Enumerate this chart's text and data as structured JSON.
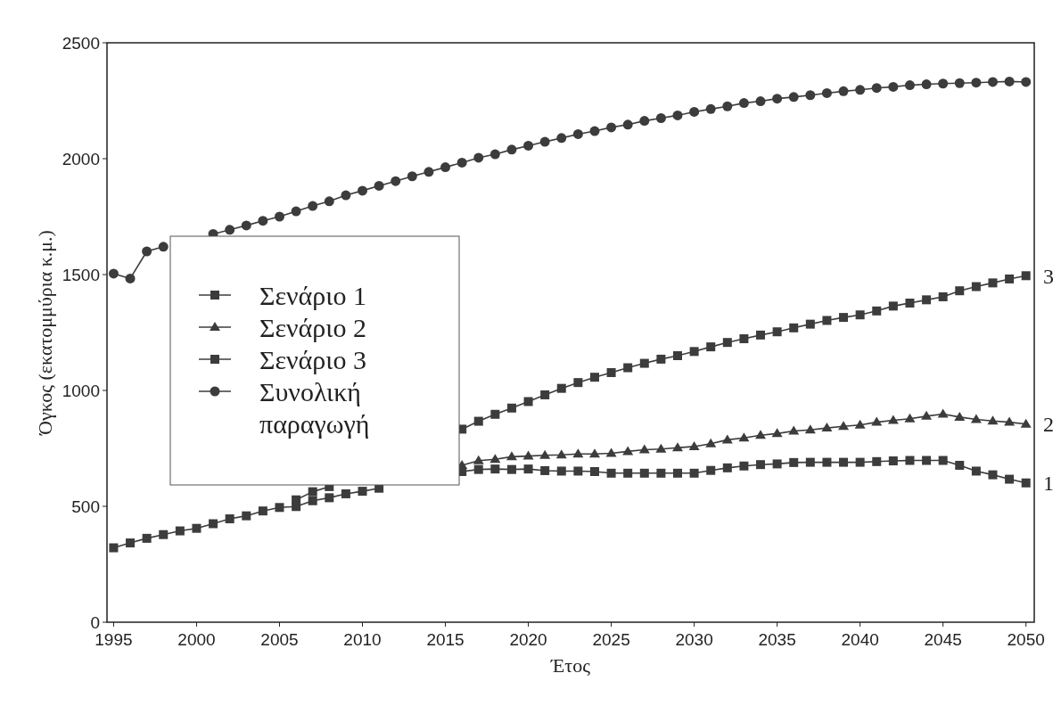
{
  "chart_data": {
    "type": "line",
    "xlabel": "Έτος",
    "ylabel": "Όγκος (εκατομμύρια κ.μ.)",
    "x": [
      1995,
      1996,
      1997,
      1998,
      1999,
      2000,
      2001,
      2002,
      2003,
      2004,
      2005,
      2006,
      2007,
      2008,
      2009,
      2010,
      2011,
      2012,
      2013,
      2014,
      2015,
      2016,
      2017,
      2018,
      2019,
      2020,
      2021,
      2022,
      2023,
      2024,
      2025,
      2026,
      2027,
      2028,
      2029,
      2030,
      2031,
      2032,
      2033,
      2034,
      2035,
      2036,
      2037,
      2038,
      2039,
      2040,
      2041,
      2042,
      2043,
      2044,
      2045,
      2046,
      2047,
      2048,
      2049,
      2050
    ],
    "xlim": [
      1994.6,
      2050.5
    ],
    "xticks": [
      1995,
      2000,
      2005,
      2010,
      2015,
      2020,
      2025,
      2030,
      2035,
      2040,
      2045,
      2050
    ],
    "ylim": [
      0,
      2500
    ],
    "yticks": [
      0,
      500,
      1000,
      1500,
      2000,
      2500
    ],
    "grid": false,
    "legend": "left",
    "line_style": "solid",
    "series": [
      {
        "name": "Σενάριο 1",
        "color": "#3c3c3c",
        "marker": "square",
        "values": [
          321,
          342,
          362,
          378,
          394,
          405,
          425,
          446,
          459,
          480,
          495,
          499,
          524,
          537,
          554,
          565,
          578,
          null,
          null,
          null,
          null,
          650,
          659,
          661,
          659,
          661,
          654,
          652,
          652,
          650,
          643,
          643,
          643,
          643,
          643,
          643,
          655,
          666,
          674,
          680,
          683,
          689,
          690,
          690,
          690,
          690,
          693,
          696,
          698,
          698,
          698,
          677,
          652,
          636,
          617,
          601
        ]
      },
      {
        "name": "Σενάριο 2",
        "color": "#3c3c3c",
        "marker": "triangle",
        "values": [
          null,
          null,
          null,
          null,
          null,
          null,
          null,
          null,
          null,
          null,
          null,
          null,
          null,
          null,
          null,
          null,
          null,
          null,
          null,
          null,
          null,
          677,
          697,
          703,
          714,
          717,
          720,
          722,
          726,
          726,
          729,
          737,
          744,
          747,
          753,
          758,
          770,
          787,
          795,
          807,
          814,
          825,
          830,
          838,
          845,
          851,
          863,
          871,
          878,
          889,
          898,
          885,
          875,
          868,
          863,
          855
        ]
      },
      {
        "name": "Σενάριο 3",
        "color": "#3c3c3c",
        "marker": "square",
        "values": [
          null,
          null,
          null,
          null,
          null,
          null,
          null,
          null,
          null,
          null,
          null,
          528,
          563,
          585,
          null,
          null,
          null,
          null,
          null,
          null,
          null,
          833,
          867,
          897,
          924,
          952,
          981,
          1009,
          1034,
          1057,
          1077,
          1098,
          1117,
          1135,
          1150,
          1168,
          1188,
          1207,
          1223,
          1239,
          1253,
          1270,
          1286,
          1302,
          1315,
          1326,
          1343,
          1364,
          1377,
          1391,
          1404,
          1430,
          1448,
          1464,
          1481,
          1495
        ]
      },
      {
        "name": "Συνολική παραγωγή",
        "color": "#3c3c3c",
        "marker": "circle",
        "values": [
          1504,
          1483,
          1600,
          1620,
          null,
          null,
          1675,
          1693,
          1712,
          1732,
          1750,
          1773,
          1796,
          1816,
          1842,
          1862,
          1883,
          1903,
          1924,
          1943,
          1963,
          1983,
          2004,
          2019,
          2039,
          2056,
          2073,
          2089,
          2106,
          2119,
          2135,
          2147,
          2163,
          2175,
          2187,
          2202,
          2214,
          2226,
          2240,
          2248,
          2259,
          2266,
          2274,
          2283,
          2291,
          2297,
          2305,
          2310,
          2317,
          2321,
          2324,
          2326,
          2328,
          2331,
          2333,
          2331
        ]
      }
    ],
    "annotations": [
      "3",
      "2",
      "1"
    ]
  }
}
